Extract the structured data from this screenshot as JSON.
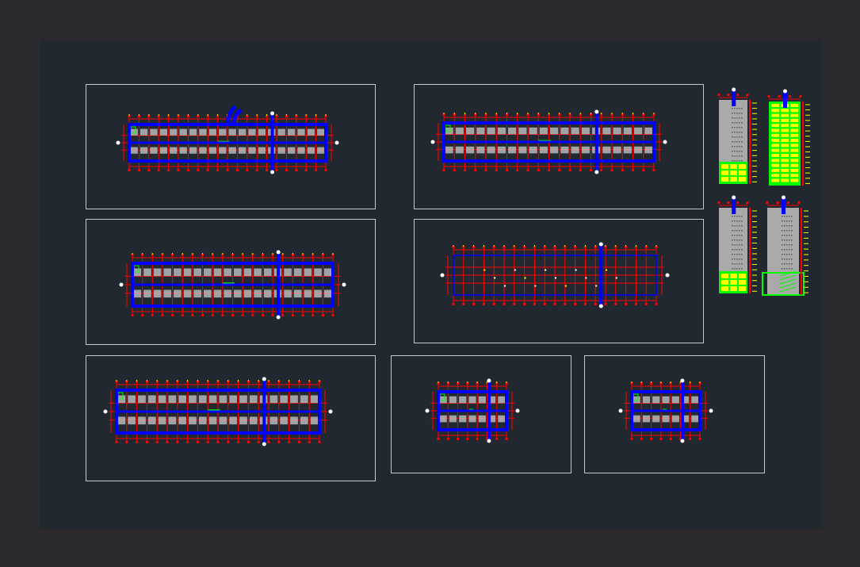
{
  "colors": {
    "background": "#2b292e",
    "model_space": "#212830",
    "frame": "#c8c8c8",
    "walls": "#0000ff",
    "axes": "#ff0000",
    "furniture": "#c0c0c0",
    "green_layer": "#00ff00",
    "yellow_layer": "#ffff00",
    "white_layer": "#ffffff"
  },
  "sheets": [
    {
      "type": "floor-plan",
      "bays": 20
    },
    {
      "type": "floor-plan",
      "bays": 20
    },
    {
      "type": "floor-plan",
      "bays": 20
    },
    {
      "type": "floor-plan",
      "bays": 20
    },
    {
      "type": "floor-plan",
      "bays": 20
    },
    {
      "type": "floor-plan",
      "bays": 7
    },
    {
      "type": "floor-plan",
      "bays": 7
    }
  ],
  "elevations": [
    {
      "type": "elevation",
      "base": "green-yellow",
      "levels": 16
    },
    {
      "type": "elevation",
      "base": "full-yellow",
      "levels": 16
    },
    {
      "type": "elevation",
      "base": "green-yellow",
      "levels": 16
    },
    {
      "type": "elevation",
      "base": "stair-section",
      "levels": 16
    }
  ]
}
